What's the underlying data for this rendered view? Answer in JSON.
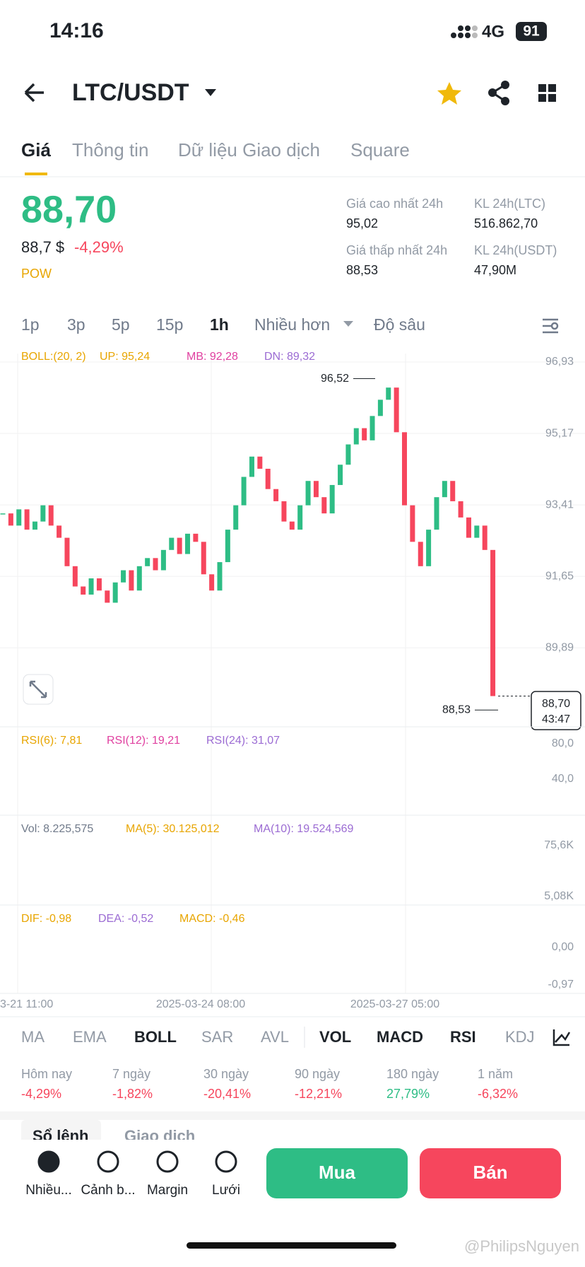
{
  "status": {
    "time": "14:16",
    "network": "4G",
    "battery": "91"
  },
  "header": {
    "pair": "LTC/USDT"
  },
  "tabs": [
    "Giá",
    "Thông tin",
    "Dữ liệu Giao dịch",
    "Square"
  ],
  "price": {
    "last": "88,70",
    "usd": "88,7 $",
    "change": "-4,29%",
    "tag": "POW"
  },
  "stats": [
    {
      "label": "Giá cao nhất 24h",
      "value": "95,02"
    },
    {
      "label": "KL 24h(LTC)",
      "value": "516.862,70"
    },
    {
      "label": "Giá thấp nhất 24h",
      "value": "88,53"
    },
    {
      "label": "KL 24h(USDT)",
      "value": "47,90M"
    }
  ],
  "intervals": [
    "1p",
    "3p",
    "5p",
    "15p",
    "1h",
    "Nhiều hơn",
    "Độ sâu"
  ],
  "chart": {
    "legend": [
      "BOLL:(20, 2)",
      "UP: 95,24",
      "MB: 92,28",
      "DN: 89,32"
    ],
    "ylim": [
      87.96,
      96.93
    ],
    "yticks": [
      {
        "value": 96.93,
        "label": "96,93"
      },
      {
        "value": 95.17,
        "label": "95,17"
      },
      {
        "value": 93.41,
        "label": "93,41"
      },
      {
        "value": 91.65,
        "label": "91,65"
      },
      {
        "value": 89.89,
        "label": "89,89"
      }
    ],
    "closes": [
      93.2,
      92.9,
      93.3,
      92.8,
      93.0,
      93.4,
      92.9,
      92.6,
      91.9,
      91.4,
      91.2,
      91.6,
      91.3,
      91.0,
      91.5,
      91.8,
      91.3,
      91.9,
      92.1,
      91.8,
      92.3,
      92.6,
      92.2,
      92.7,
      92.5,
      91.7,
      91.3,
      92.0,
      92.8,
      93.4,
      94.1,
      94.6,
      94.3,
      93.8,
      93.5,
      93.0,
      92.8,
      93.4,
      94.0,
      93.6,
      93.2,
      93.9,
      94.4,
      94.9,
      95.3,
      95.0,
      95.6,
      96.0,
      96.3,
      95.2,
      93.4,
      92.5,
      91.9,
      92.8,
      93.6,
      94.0,
      93.5,
      93.1,
      92.6,
      92.9,
      92.3,
      88.7
    ],
    "high": {
      "value": 96.52,
      "label": "96,52"
    },
    "low": {
      "value": 88.53,
      "label": "88,53"
    },
    "current": {
      "value": 88.7,
      "label": "88,70",
      "countdown": "43:47"
    }
  },
  "rsi": {
    "legend": [
      "RSI(6): 7,81",
      "RSI(12): 19,21",
      "RSI(24): 31,07"
    ],
    "ticks": [
      "80,0",
      "40,0"
    ]
  },
  "vol": {
    "legend": [
      "Vol: 8.225,575",
      "MA(5): 30.125,012",
      "MA(10): 19.524,569"
    ],
    "ticks": [
      "75,6K",
      "5,08K"
    ]
  },
  "macd": {
    "legend": [
      "DIF: -0,98",
      "DEA: -0,52",
      "MACD: -0,46"
    ],
    "ticks": [
      "0,00",
      "-0,97"
    ]
  },
  "xlabels": [
    "3-21 11:00",
    "2025-03-24 08:00",
    "2025-03-27 05:00"
  ],
  "indicators": [
    "MA",
    "EMA",
    "BOLL",
    "SAR",
    "AVL",
    "VOL",
    "MACD",
    "RSI",
    "KDJ"
  ],
  "periods": [
    {
      "label": "Hôm nay",
      "value": "-4,29%"
    },
    {
      "label": "7 ngày",
      "value": "-1,82%"
    },
    {
      "label": "30 ngày",
      "value": "-20,41%"
    },
    {
      "label": "90 ngày",
      "value": "-12,21%"
    },
    {
      "label": "180 ngày",
      "value": "27,79%"
    },
    {
      "label": "1 năm",
      "value": "-6,32%"
    }
  ],
  "bottom_tabs": [
    "Sổ lệnh",
    "Giao dịch"
  ],
  "nav": [
    "Nhiều...",
    "Cảnh b...",
    "Margin",
    "Lưới"
  ],
  "buttons": [
    "Mua",
    "Bán"
  ],
  "watermark": "@PhilipsNguyen"
}
